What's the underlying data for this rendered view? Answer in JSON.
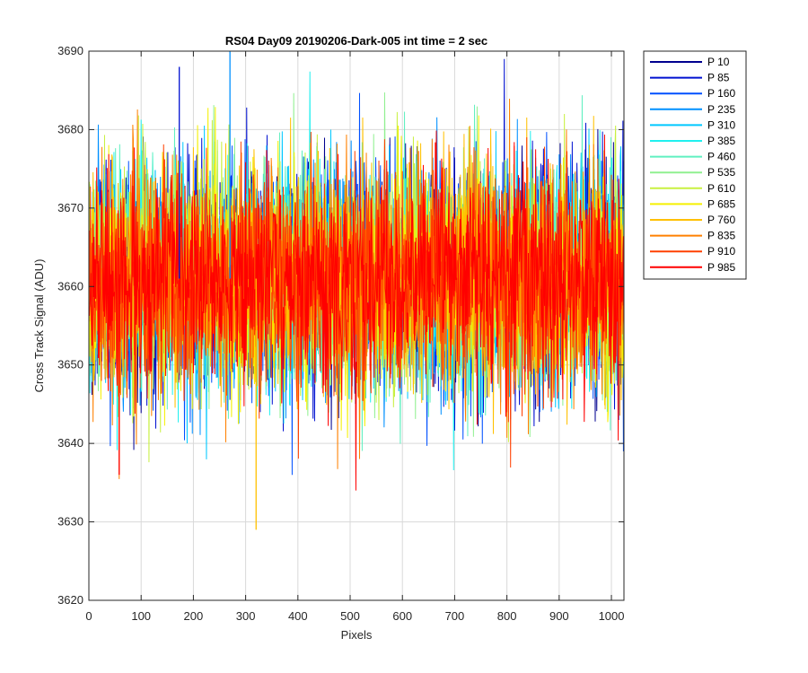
{
  "chart_data": {
    "type": "line",
    "title": "RS04 Day09 20190206-Dark-005 int time = 2 sec",
    "xlabel": "Pixels",
    "ylabel": "Cross Track Signal (ADU)",
    "xlim": [
      0,
      1024
    ],
    "ylim": [
      3620,
      3690
    ],
    "xticks": [
      0,
      100,
      200,
      300,
      400,
      500,
      600,
      700,
      800,
      900,
      1000
    ],
    "yticks": [
      3620,
      3630,
      3640,
      3650,
      3660,
      3670,
      3680,
      3690
    ],
    "grid": true,
    "legend_position": "outside-top-right",
    "x_range": [
      1,
      1024
    ],
    "base_level": 3661,
    "noise_std": 7,
    "series": [
      {
        "name": "P 10",
        "color": "#00008f"
      },
      {
        "name": "P 85",
        "color": "#0010d0"
      },
      {
        "name": "P 160",
        "color": "#0050ff"
      },
      {
        "name": "P 235",
        "color": "#0090ff"
      },
      {
        "name": "P 310",
        "color": "#00c8ff"
      },
      {
        "name": "P 385",
        "color": "#20f0ef"
      },
      {
        "name": "P 460",
        "color": "#60f0c0"
      },
      {
        "name": "P 535",
        "color": "#90f090"
      },
      {
        "name": "P 610",
        "color": "#c8f040"
      },
      {
        "name": "P 685",
        "color": "#f5f000"
      },
      {
        "name": "P 760",
        "color": "#ffc000"
      },
      {
        "name": "P 835",
        "color": "#ff8000"
      },
      {
        "name": "P 910",
        "color": "#ff4000"
      },
      {
        "name": "P 985",
        "color": "#ff0000"
      }
    ],
    "notable_extremes": [
      {
        "series": "P 760",
        "x": 320,
        "y": 3629
      },
      {
        "series": "P 985",
        "x": 58,
        "y": 3636
      },
      {
        "series": "P 85",
        "x": 173,
        "y": 3688
      },
      {
        "series": "P 235",
        "x": 270,
        "y": 3690
      }
    ]
  }
}
